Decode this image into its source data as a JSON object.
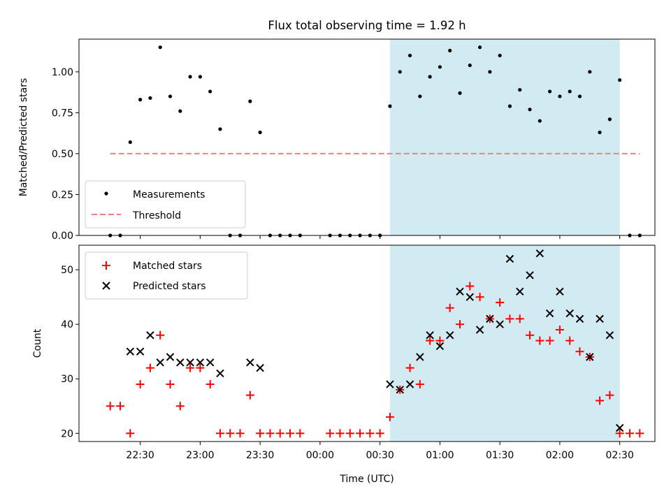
{
  "title": "Flux total observing time = 1.92 h",
  "colors": {
    "shade": "#add8e6",
    "threshold": "#f08080",
    "matched": "#ff0000",
    "predicted": "#000000",
    "measurement": "#000000"
  },
  "chart_data": [
    {
      "type": "scatter",
      "ylabel": "Matched/Predicted stars",
      "ylim": [
        0,
        1.2
      ],
      "yticks": [
        "0.00",
        "0.25",
        "0.50",
        "0.75",
        "1.00"
      ],
      "legend_position": "lower-left",
      "shaded_span": {
        "x0": "00:35",
        "x1": "02:30"
      },
      "threshold": {
        "name": "Threshold",
        "value": 0.5,
        "x_start": "22:15",
        "x_end": "02:40"
      },
      "series": [
        {
          "name": "Measurements",
          "points": [
            [
              "22:15",
              0.0
            ],
            [
              "22:20",
              0.0
            ],
            [
              "22:25",
              0.57
            ],
            [
              "22:30",
              0.83
            ],
            [
              "22:35",
              0.84
            ],
            [
              "22:40",
              1.15
            ],
            [
              "22:45",
              0.85
            ],
            [
              "22:50",
              0.76
            ],
            [
              "22:55",
              0.97
            ],
            [
              "23:00",
              0.97
            ],
            [
              "23:05",
              0.88
            ],
            [
              "23:10",
              0.65
            ],
            [
              "23:15",
              0.0
            ],
            [
              "23:20",
              0.0
            ],
            [
              "23:25",
              0.82
            ],
            [
              "23:30",
              0.63
            ],
            [
              "23:35",
              0.0
            ],
            [
              "23:40",
              0.0
            ],
            [
              "23:45",
              0.0
            ],
            [
              "23:50",
              0.0
            ],
            [
              "00:05",
              0.0
            ],
            [
              "00:10",
              0.0
            ],
            [
              "00:15",
              0.0
            ],
            [
              "00:20",
              0.0
            ],
            [
              "00:25",
              0.0
            ],
            [
              "00:30",
              0.0
            ],
            [
              "00:35",
              0.79
            ],
            [
              "00:40",
              1.0
            ],
            [
              "00:45",
              1.1
            ],
            [
              "00:50",
              0.85
            ],
            [
              "00:55",
              0.97
            ],
            [
              "01:00",
              1.03
            ],
            [
              "01:05",
              1.13
            ],
            [
              "01:10",
              0.87
            ],
            [
              "01:15",
              1.04
            ],
            [
              "01:20",
              1.15
            ],
            [
              "01:25",
              1.0
            ],
            [
              "01:30",
              1.1
            ],
            [
              "01:35",
              0.79
            ],
            [
              "01:40",
              0.89
            ],
            [
              "01:45",
              0.77
            ],
            [
              "01:50",
              0.7
            ],
            [
              "01:55",
              0.88
            ],
            [
              "02:00",
              0.85
            ],
            [
              "02:05",
              0.88
            ],
            [
              "02:10",
              0.85
            ],
            [
              "02:15",
              1.0
            ],
            [
              "02:20",
              0.63
            ],
            [
              "02:25",
              0.71
            ],
            [
              "02:30",
              0.95
            ],
            [
              "02:35",
              0.0
            ],
            [
              "02:40",
              0.0
            ]
          ]
        }
      ]
    },
    {
      "type": "scatter",
      "xlabel": "Time (UTC)",
      "ylabel": "Count",
      "ylim": [
        18.5,
        54.5
      ],
      "yticks": [
        "20",
        "30",
        "40",
        "50"
      ],
      "xticks": [
        "22:30",
        "23:00",
        "23:30",
        "00:00",
        "00:30",
        "01:00",
        "01:30",
        "02:00",
        "02:30"
      ],
      "legend_position": "upper-left",
      "shaded_span": {
        "x0": "00:35",
        "x1": "02:30"
      },
      "series": [
        {
          "name": "Matched stars",
          "points": [
            [
              "22:15",
              25
            ],
            [
              "22:20",
              25
            ],
            [
              "22:25",
              20
            ],
            [
              "22:30",
              29
            ],
            [
              "22:35",
              32
            ],
            [
              "22:40",
              38
            ],
            [
              "22:45",
              29
            ],
            [
              "22:50",
              25
            ],
            [
              "22:55",
              32
            ],
            [
              "23:00",
              32
            ],
            [
              "23:05",
              29
            ],
            [
              "23:10",
              20
            ],
            [
              "23:15",
              20
            ],
            [
              "23:20",
              20
            ],
            [
              "23:25",
              27
            ],
            [
              "23:30",
              20
            ],
            [
              "23:35",
              20
            ],
            [
              "23:40",
              20
            ],
            [
              "23:45",
              20
            ],
            [
              "23:50",
              20
            ],
            [
              "00:05",
              20
            ],
            [
              "00:10",
              20
            ],
            [
              "00:15",
              20
            ],
            [
              "00:20",
              20
            ],
            [
              "00:25",
              20
            ],
            [
              "00:30",
              20
            ],
            [
              "00:35",
              23
            ],
            [
              "00:40",
              28
            ],
            [
              "00:45",
              32
            ],
            [
              "00:50",
              29
            ],
            [
              "00:55",
              37
            ],
            [
              "01:00",
              37
            ],
            [
              "01:05",
              43
            ],
            [
              "01:10",
              40
            ],
            [
              "01:15",
              47
            ],
            [
              "01:20",
              45
            ],
            [
              "01:25",
              41
            ],
            [
              "01:30",
              44
            ],
            [
              "01:35",
              41
            ],
            [
              "01:40",
              41
            ],
            [
              "01:45",
              38
            ],
            [
              "01:50",
              37
            ],
            [
              "01:55",
              37
            ],
            [
              "02:00",
              39
            ],
            [
              "02:05",
              37
            ],
            [
              "02:10",
              35
            ],
            [
              "02:15",
              34
            ],
            [
              "02:20",
              26
            ],
            [
              "02:25",
              27
            ],
            [
              "02:30",
              20
            ],
            [
              "02:35",
              20
            ],
            [
              "02:40",
              20
            ]
          ]
        },
        {
          "name": "Predicted stars",
          "points": [
            [
              "22:25",
              35
            ],
            [
              "22:30",
              35
            ],
            [
              "22:35",
              38
            ],
            [
              "22:40",
              33
            ],
            [
              "22:45",
              34
            ],
            [
              "22:50",
              33
            ],
            [
              "22:55",
              33
            ],
            [
              "23:00",
              33
            ],
            [
              "23:05",
              33
            ],
            [
              "23:10",
              31
            ],
            [
              "23:25",
              33
            ],
            [
              "23:30",
              32
            ],
            [
              "00:35",
              29
            ],
            [
              "00:40",
              28
            ],
            [
              "00:45",
              29
            ],
            [
              "00:50",
              34
            ],
            [
              "00:55",
              38
            ],
            [
              "01:00",
              36
            ],
            [
              "01:05",
              38
            ],
            [
              "01:10",
              46
            ],
            [
              "01:15",
              45
            ],
            [
              "01:20",
              39
            ],
            [
              "01:25",
              41
            ],
            [
              "01:30",
              40
            ],
            [
              "01:35",
              52
            ],
            [
              "01:40",
              46
            ],
            [
              "01:45",
              49
            ],
            [
              "01:50",
              53
            ],
            [
              "01:55",
              42
            ],
            [
              "02:00",
              46
            ],
            [
              "02:05",
              42
            ],
            [
              "02:10",
              41
            ],
            [
              "02:15",
              34
            ],
            [
              "02:20",
              41
            ],
            [
              "02:25",
              38
            ],
            [
              "02:30",
              21
            ]
          ]
        }
      ]
    }
  ]
}
